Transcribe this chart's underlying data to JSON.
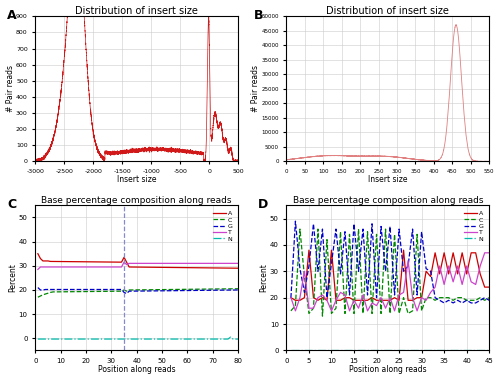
{
  "title_A": "Distribution of insert size",
  "title_B": "Distribution of insert size",
  "title_C": "Base percentage composition along reads",
  "title_D": "Base percentage composition along reads",
  "xlabel_A": "Insert size",
  "xlabel_B": "Insert size",
  "ylabel_AB": "# Pair reads",
  "xlabel_CD": "Position along reads",
  "ylabel_CD": "Percent",
  "color_line_A": "#cc0000",
  "color_line_B": "#e08080",
  "background_color": "#ffffff",
  "grid_color": "#cccccc",
  "colors": {
    "A": "#cc0000",
    "C": "#008800",
    "G": "#0000cc",
    "T": "#cc44cc",
    "N": "#00bbaa"
  }
}
